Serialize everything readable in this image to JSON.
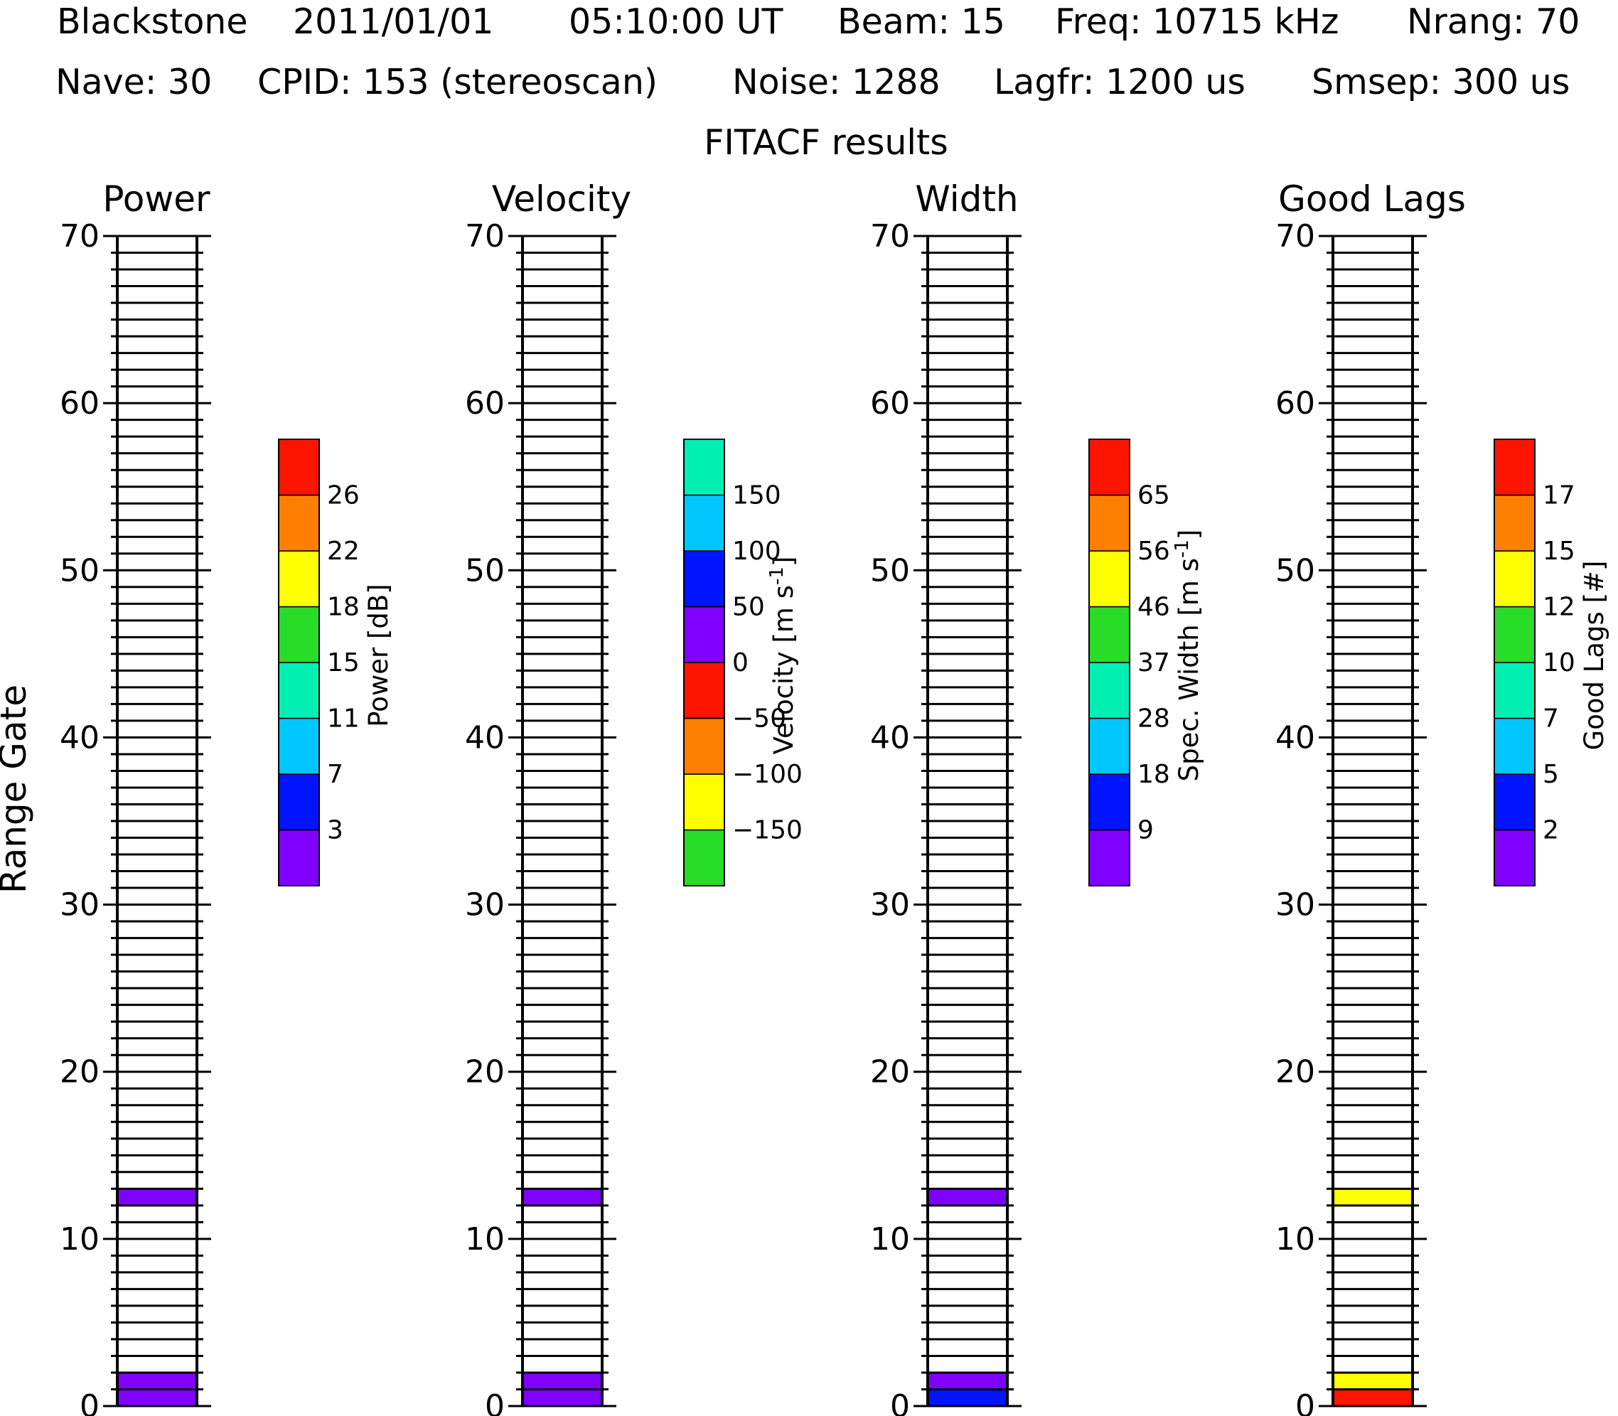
{
  "header": {
    "line1": [
      "Blackstone",
      "2011/01/01",
      "05:10:00 UT",
      "Beam: 15",
      "Freq: 10715 kHz",
      "Nrang: 70"
    ],
    "line2": [
      "Nave: 30",
      "CPID: 153 (stereoscan)",
      "Noise: 1288",
      "Lagfr: 1200 us",
      "Smsep: 300 us"
    ],
    "line3": "FITACF results"
  },
  "y_axis_label": "Range Gate",
  "chart_data": [
    {
      "type": "heatmap",
      "title": "Power",
      "ylabel": "Range Gate",
      "ylim": [
        0,
        70
      ],
      "yticks": [
        0,
        10,
        20,
        30,
        40,
        50,
        60,
        70
      ],
      "cells": [
        {
          "gate": 0,
          "color": "#8000ff"
        },
        {
          "gate": 1,
          "color": "#8000ff"
        },
        {
          "gate": 12,
          "color": "#8000ff"
        }
      ],
      "colorbar": {
        "label": "Power [dB]",
        "ticks": [
          "3",
          "7",
          "11",
          "15",
          "18",
          "22",
          "26"
        ],
        "colors": [
          "#8000ff",
          "#0014ff",
          "#00c8ff",
          "#00f0b4",
          "#28dc28",
          "#ffff00",
          "#ff8000",
          "#ff1400"
        ]
      }
    },
    {
      "type": "heatmap",
      "title": "Velocity",
      "ylabel": "",
      "ylim": [
        0,
        70
      ],
      "yticks": [
        0,
        10,
        20,
        30,
        40,
        50,
        60,
        70
      ],
      "cells": [
        {
          "gate": 0,
          "color": "#8000ff"
        },
        {
          "gate": 1,
          "color": "#8000ff"
        },
        {
          "gate": 12,
          "color": "#8000ff"
        }
      ],
      "colorbar": {
        "label": "Velocity [m s-1]",
        "label_main": "Velocity [m s",
        "label_sup": "-1",
        "label_tail": "]",
        "ticks": [
          "−150",
          "−100",
          "−50",
          "0",
          "50",
          "100",
          "150"
        ],
        "colors": [
          "#28dc28",
          "#ffff00",
          "#ff8000",
          "#ff1400",
          "#8000ff",
          "#0014ff",
          "#00c8ff",
          "#00f0b4"
        ]
      }
    },
    {
      "type": "heatmap",
      "title": "Width",
      "ylabel": "",
      "ylim": [
        0,
        70
      ],
      "yticks": [
        0,
        10,
        20,
        30,
        40,
        50,
        60,
        70
      ],
      "cells": [
        {
          "gate": 0,
          "color": "#0014ff"
        },
        {
          "gate": 1,
          "color": "#8000ff"
        },
        {
          "gate": 12,
          "color": "#8000ff"
        }
      ],
      "colorbar": {
        "label": "Spec. Width [m s-1]",
        "label_main": "Spec. Width [m s",
        "label_sup": "-1",
        "label_tail": "]",
        "ticks": [
          "9",
          "18",
          "28",
          "37",
          "46",
          "56",
          "65"
        ],
        "colors": [
          "#8000ff",
          "#0014ff",
          "#00c8ff",
          "#00f0b4",
          "#28dc28",
          "#ffff00",
          "#ff8000",
          "#ff1400"
        ]
      }
    },
    {
      "type": "heatmap",
      "title": "Good Lags",
      "ylabel": "",
      "ylim": [
        0,
        70
      ],
      "yticks": [
        0,
        10,
        20,
        30,
        40,
        50,
        60,
        70
      ],
      "cells": [
        {
          "gate": 0,
          "color": "#ff1400"
        },
        {
          "gate": 1,
          "color": "#ffff00"
        },
        {
          "gate": 12,
          "color": "#ffff00"
        }
      ],
      "colorbar": {
        "label": "Good Lags [#]",
        "ticks": [
          "2",
          "5",
          "7",
          "10",
          "12",
          "15",
          "17"
        ],
        "colors": [
          "#8000ff",
          "#0014ff",
          "#00c8ff",
          "#00f0b4",
          "#28dc28",
          "#ffff00",
          "#ff8000",
          "#ff1400"
        ]
      }
    }
  ]
}
